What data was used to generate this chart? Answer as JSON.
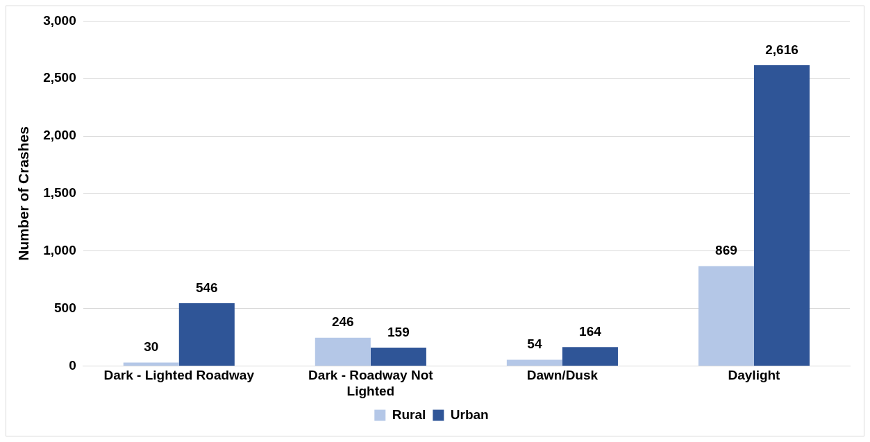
{
  "chart_data": {
    "type": "bar",
    "ylabel": "Number of Crashes",
    "categories": [
      "Dark - Lighted Roadway",
      "Dark - Roadway Not Lighted",
      "Dawn/Dusk",
      "Daylight"
    ],
    "series": [
      {
        "name": "Rural",
        "color": "#b4c7e7",
        "values": [
          30,
          246,
          54,
          869
        ],
        "value_labels": [
          "30",
          "246",
          "54",
          "869"
        ]
      },
      {
        "name": "Urban",
        "color": "#2f5597",
        "values": [
          546,
          159,
          164,
          2616
        ],
        "value_labels": [
          "546",
          "159",
          "164",
          "2,616"
        ]
      }
    ],
    "ylim": [
      0,
      3000
    ],
    "yticks": [
      0,
      500,
      {
        "value": 1000,
        "label": "1,000"
      },
      {
        "value": 1500,
        "label": "1,500"
      },
      {
        "value": 2000,
        "label": "2,000"
      },
      {
        "value": 2500,
        "label": "2,500"
      },
      {
        "value": 3000,
        "label": "3,000"
      }
    ],
    "grid": "y",
    "legend": "bottom"
  }
}
